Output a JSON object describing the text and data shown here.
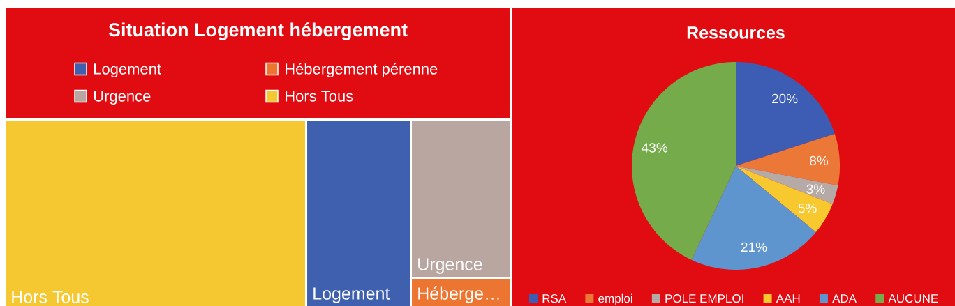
{
  "chart_data": [
    {
      "type": "other",
      "title": "Situation Logement hébergement",
      "categories": [
        "Logement",
        "Hébergement pérenne",
        "Urgence",
        "Hors Tous"
      ],
      "colors": [
        "#3f60ae",
        "#ed7532",
        "#b9a6a0",
        "#f5c730"
      ],
      "annotations": [
        "Logement",
        "Héberge…",
        "Urgence",
        "Hors Tous"
      ]
    },
    {
      "type": "pie",
      "title": "Ressources",
      "categories": [
        "RSA",
        "emploi",
        "POLE EMPLOI",
        "AAH",
        "ADA",
        "AUCUNE"
      ],
      "values": [
        20,
        8,
        3,
        5,
        21,
        43
      ],
      "colors": [
        "#3d5cb3",
        "#ec7838",
        "#b5aaa5",
        "#f7c92f",
        "#5e95cf",
        "#75ab4a"
      ],
      "value_labels": [
        "20%",
        "8%",
        "3%",
        "5%",
        "21%",
        "43%"
      ],
      "legend": "bottom"
    }
  ]
}
